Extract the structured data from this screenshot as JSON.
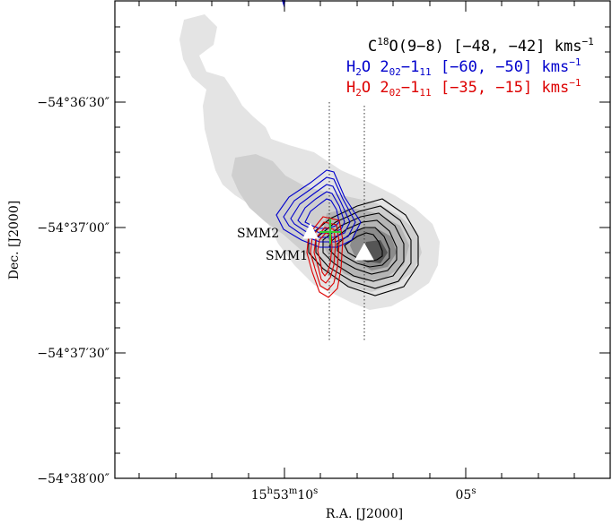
{
  "figure": {
    "x_axis_label": "R.A. [J2000]",
    "y_axis_label": "Dec. [J2000]",
    "y_ticks": [
      {
        "dms": "−54°36′30″",
        "value_arcsec": 30
      },
      {
        "dms": "−54°37′00″",
        "value_arcsec": 0
      },
      {
        "dms": "−54°37′30″",
        "value_arcsec": -30
      },
      {
        "dms": "−54°38′00″",
        "value_arcsec": -60
      }
    ],
    "x_ticks": [
      {
        "h": "15",
        "m": "53",
        "s": "10",
        "sec": 10
      },
      {
        "s": "05",
        "sec": 5
      }
    ],
    "legend": [
      {
        "molecule_pre": "C",
        "molecule_sup": "18",
        "molecule_post": "O(9−8)",
        "transition_a": "",
        "transition_a_sub": "",
        "transition_b": "",
        "transition_b_sub": "",
        "range": "[−48, −42]",
        "unit": "kms",
        "unit_sup": "−1",
        "color": "#000000"
      },
      {
        "molecule_pre": "H",
        "molecule_sub": "2",
        "molecule_post": "O",
        "transition_a": "2",
        "transition_a_sub": "02",
        "transition_b": "1",
        "transition_b_sub": "11",
        "range": "[−60, −50]",
        "unit": "kms",
        "unit_sup": "−1",
        "color": "#0000cc"
      },
      {
        "molecule_pre": "H",
        "molecule_sub": "2",
        "molecule_post": "O",
        "transition_a": "2",
        "transition_a_sub": "02",
        "transition_b": "1",
        "transition_b_sub": "11",
        "range": "[−35, −15]",
        "unit": "kms",
        "unit_sup": "−1",
        "color": "#dd0000"
      }
    ],
    "sources": [
      {
        "name": "SMM2"
      },
      {
        "name": "SMM1"
      }
    ],
    "colors": {
      "background_emission": "#dddddd",
      "black_contours": "#000000",
      "blue_contours": "#0000cc",
      "red_contours": "#dd0000",
      "green_cross": "#33cc33",
      "markers": "#ffffff"
    }
  }
}
